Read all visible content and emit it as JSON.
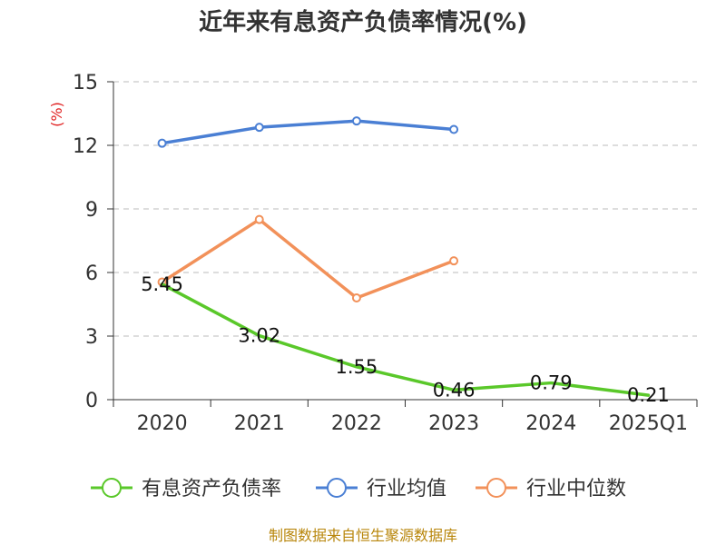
{
  "title": "近年来有息资产负债率情况(%)",
  "source_text": "制图数据来自恒生聚源数据库",
  "chart_data": {
    "type": "line",
    "title": "近年来有息资产负债率情况(%)",
    "ylabel": "(%)",
    "categories": [
      "2020",
      "2021",
      "2022",
      "2023",
      "2024",
      "2025Q1"
    ],
    "ylim": [
      0,
      15
    ],
    "yticks": [
      0,
      3,
      6,
      9,
      12,
      15
    ],
    "grid": true,
    "legend_position": "bottom",
    "series": [
      {
        "name": "有息资产负债率",
        "color": "#5ac82a",
        "values": [
          5.45,
          3.02,
          1.55,
          0.46,
          0.79,
          0.21
        ],
        "labels": [
          "5.45",
          "3.02",
          "1.55",
          "0.46",
          "0.79",
          "0.21"
        ],
        "markers": false
      },
      {
        "name": "行业均值",
        "color": "#4a7fd4",
        "values": [
          12.1,
          12.85,
          13.15,
          12.75,
          null,
          null
        ],
        "markers": true
      },
      {
        "name": "行业中位数",
        "color": "#f2915a",
        "values": [
          5.55,
          8.5,
          4.8,
          6.55,
          null,
          null
        ],
        "markers": true
      }
    ]
  }
}
